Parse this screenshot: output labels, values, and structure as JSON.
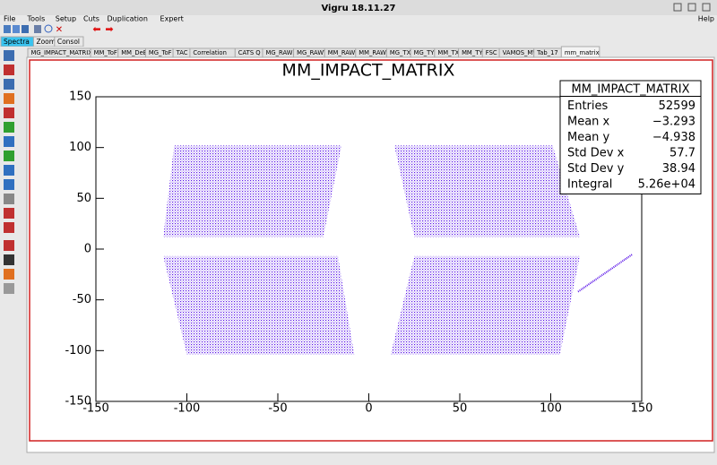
{
  "window": {
    "title": "Vigru  18.11.27"
  },
  "menu": {
    "items": [
      "File",
      "Tools",
      "Setup",
      "Cuts",
      "Duplication",
      "Expert"
    ],
    "help": "Help"
  },
  "tabs": {
    "main": [
      "Spectra",
      "Zoom",
      "Consol"
    ],
    "sub": [
      "MG_IMPACT_MATRIX",
      "MM_ToF",
      "MM_DeE",
      "MG_ToF",
      "TAC",
      "Correlation",
      "CATS Q",
      "MG_RAWX",
      "MG_RAWY",
      "MM_RAWX",
      "MM_RAWY",
      "MG_TX",
      "MG_TY",
      "MM_TX",
      "MM_TY",
      "FSC",
      "VAMOS_MW",
      "Tab_17",
      "mm_matrix"
    ]
  },
  "chart_data": {
    "type": "scatter",
    "title": "MM_IMPACT_MATRIX",
    "color": "#5b16e8",
    "xlim": [
      -150,
      150
    ],
    "xticks": [
      -150,
      -100,
      -50,
      0,
      50,
      100,
      150
    ],
    "ylim": [
      -150,
      150
    ],
    "yticks": [
      -150,
      -100,
      -50,
      0,
      50,
      100,
      150
    ],
    "regions": [
      {
        "x": [
          -107,
          -15,
          -25,
          -113
        ],
        "y": [
          102,
          102,
          12,
          12
        ]
      },
      {
        "x": [
          14,
          101,
          116,
          25
        ],
        "y": [
          102,
          102,
          12,
          12
        ]
      },
      {
        "x": [
          -113,
          -17,
          -8,
          -100
        ],
        "y": [
          -7,
          -7,
          -104,
          -104
        ]
      },
      {
        "x": [
          25,
          116,
          105,
          12
        ],
        "y": [
          -7,
          -7,
          -104,
          -104
        ]
      },
      {
        "x": [
          115,
          145
        ],
        "y": [
          -42,
          -5
        ]
      }
    ],
    "stats": {
      "title": "MM_IMPACT_MATRIX",
      "rows": [
        [
          "Entries",
          "52599"
        ],
        [
          "Mean x",
          "−3.293"
        ],
        [
          "Mean y",
          "−4.938"
        ],
        [
          "Std Dev x",
          "57.7"
        ],
        [
          "Std Dev y",
          "38.94"
        ],
        [
          "Integral",
          "5.26e+04"
        ]
      ]
    }
  }
}
